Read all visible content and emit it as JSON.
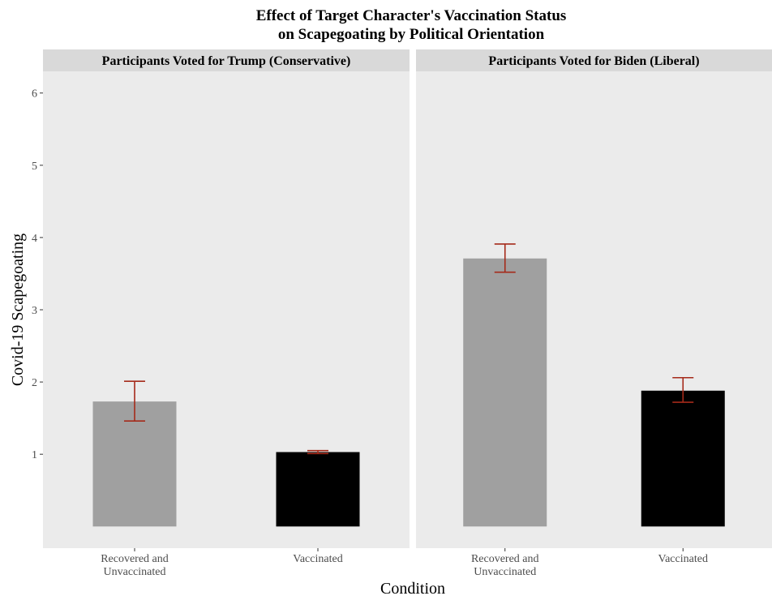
{
  "chart_data": {
    "type": "bar",
    "title": [
      "Effect of Target Character's Vaccination Status",
      "on Scapegoating by Political Orientation"
    ],
    "xlabel": "Condition",
    "ylabel": "Covid-19 Scapegoating",
    "ylim": [
      -0.3,
      6.3
    ],
    "yticks": [
      "1",
      "2",
      "3",
      "4",
      "5",
      "6"
    ],
    "categories": [
      [
        "Recovered and",
        "Unvaccinated"
      ],
      [
        "Vaccinated"
      ]
    ],
    "bar_colors": [
      "#a0a0a0",
      "#000000"
    ],
    "error_bar_color": "#a52a1a",
    "grid": false,
    "panels": [
      {
        "label": "Participants Voted for Trump (Conservative)",
        "values": [
          1.73,
          1.03
        ],
        "error_low": [
          1.46,
          1.01
        ],
        "error_high": [
          2.01,
          1.05
        ]
      },
      {
        "label": "Participants Voted for Biden (Liberal)",
        "values": [
          3.71,
          1.88
        ],
        "error_low": [
          3.52,
          1.72
        ],
        "error_high": [
          3.91,
          2.06
        ]
      }
    ]
  }
}
